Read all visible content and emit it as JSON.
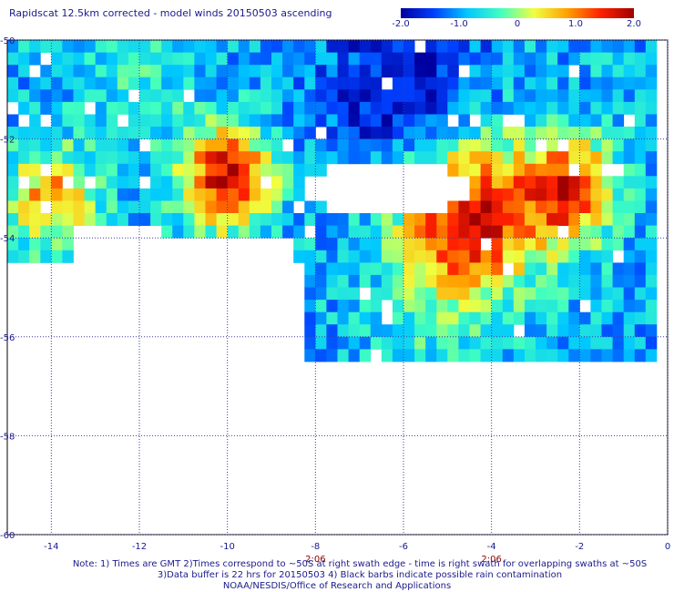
{
  "chart_data": {
    "type": "heatmap",
    "title": "Rapidscat 12.5km corrected - model winds 20150503 ascending",
    "colorbar": {
      "min": -2.0,
      "max": 2.0,
      "tick_labels": [
        "-2.0",
        "-1.0",
        "0",
        "1.0",
        "2.0"
      ],
      "tick_values": [
        -2.0,
        -1.0,
        0,
        1.0,
        2.0
      ],
      "colors": [
        "#0000a0",
        "#0040ff",
        "#00c8ff",
        "#40ffc0",
        "#f0ff40",
        "#ffa000",
        "#ff2000",
        "#a00000"
      ]
    },
    "xlim": [
      -15,
      0
    ],
    "ylim": [
      -60,
      -50
    ],
    "x_ticks": [
      -14,
      -12,
      -10,
      -8,
      -6,
      -4,
      -2,
      0
    ],
    "x_tick_labels": [
      "-14",
      "-12",
      "-10",
      "-8",
      "-6",
      "-4",
      "-2",
      "0"
    ],
    "y_ticks": [
      -50,
      -52,
      -54,
      -56,
      -58,
      -60
    ],
    "y_tick_labels": [
      "-50",
      "-52",
      "-54",
      "-56",
      "-58",
      "-60"
    ],
    "grid": true,
    "time_labels": [
      {
        "x": -8,
        "text": "2:06"
      },
      {
        "x": -4,
        "text": "2:06"
      }
    ],
    "grid_resolution_deg": 0.25,
    "coverage": {
      "description_regions": [
        {
          "lon_min": -15,
          "lon_max": -0.25,
          "lat_min": -54.5,
          "lat_max": -50,
          "note": "upper swath"
        },
        {
          "lon_min": -8.25,
          "lon_max": -0.25,
          "lat_min": -56.5,
          "lat_max": -54,
          "note": "lower swath"
        }
      ]
    },
    "anomaly_features": [
      {
        "lon": -10.0,
        "lat": -52.8,
        "value": 1.9,
        "radius": 1.0
      },
      {
        "lon": -4.5,
        "lat": -53.6,
        "value": 1.8,
        "radius": 1.6
      },
      {
        "lon": -2.2,
        "lat": -53.0,
        "value": 1.5,
        "radius": 1.0
      },
      {
        "lon": -6.0,
        "lat": -51.0,
        "value": -1.9,
        "radius": 1.8
      },
      {
        "lon": -14.0,
        "lat": -53.2,
        "value": 0.9,
        "radius": 1.0
      },
      {
        "lon": -12.0,
        "lat": -50.8,
        "value": -0.4,
        "radius": 1.2
      },
      {
        "lon": -5.5,
        "lat": -55.6,
        "value": -0.6,
        "radius": 1.2
      }
    ]
  },
  "notes": {
    "line1": "Note: 1) Times are GMT 2)Times correspond to ~50S at right swath edge - time is right swath for overlapping swaths at ~50S",
    "line2": "3)Data buffer is 22 hrs for 20150503 4) Black barbs indicate possible rain contamination",
    "line3": "NOAA/NESDIS/Office of Research and Applications"
  }
}
